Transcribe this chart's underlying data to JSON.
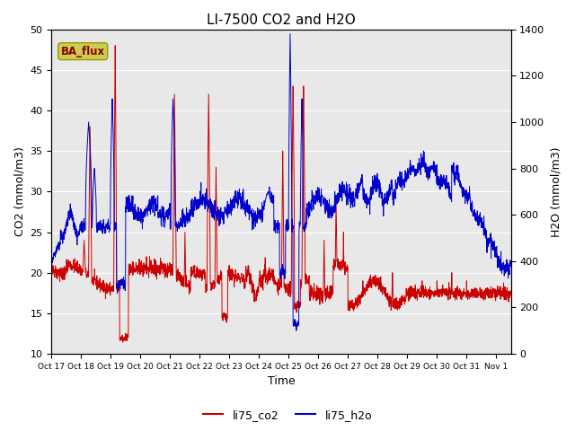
{
  "title": "LI-7500 CO2 and H2O",
  "xlabel": "Time",
  "ylabel_left": "CO2 (mmol/m3)",
  "ylabel_right": "H2O (mmol/m3)",
  "ylim_left": [
    10,
    50
  ],
  "ylim_right": [
    0,
    1400
  ],
  "legend_label_co2": "li75_co2",
  "legend_label_h2o": "li75_h2o",
  "co2_color": "#cc0000",
  "h2o_color": "#0000cc",
  "background_color": "#e8e8e8",
  "legend_box_facecolor": "#cccc55",
  "legend_box_edgecolor": "#999900",
  "legend_box_text": "BA_flux",
  "legend_box_textcolor": "#8b0000",
  "title_fontsize": 11,
  "axis_fontsize": 9,
  "tick_fontsize": 8,
  "tick_labels": [
    "Oct 17",
    "Oct 18",
    "Oct 19",
    "Oct 20",
    "Oct 21",
    "Oct 22",
    "Oct 23",
    "Oct 24",
    "Oct 25",
    "Oct 26",
    "Oct 27",
    "Oct 28",
    "Oct 29",
    "Oct 30",
    "Oct 31",
    "Nov 1"
  ],
  "yticks_left": [
    10,
    15,
    20,
    25,
    30,
    35,
    40,
    45,
    50
  ],
  "yticks_right": [
    0,
    200,
    400,
    600,
    800,
    1000,
    1200,
    1400
  ]
}
